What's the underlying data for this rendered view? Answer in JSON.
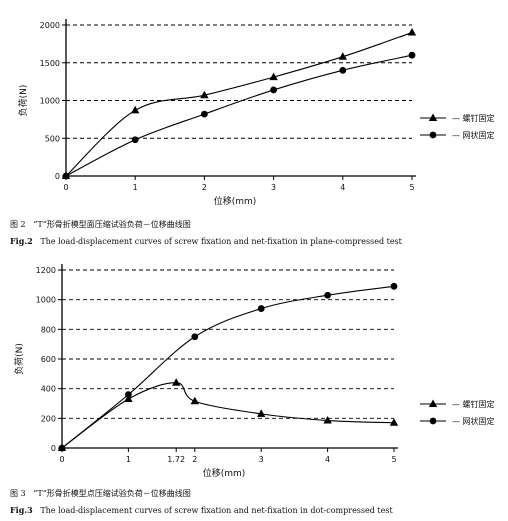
{
  "chart_data": [
    {
      "type": "line",
      "xlabel": "位移(mm)",
      "ylabel": "负荷(N)",
      "xlim": [
        0,
        5
      ],
      "ylim": [
        0,
        2000
      ],
      "xticks": [
        "0",
        "1",
        "2",
        "3",
        "4",
        "5"
      ],
      "yticks": [
        "0",
        "500",
        "1000",
        "1500",
        "2000"
      ],
      "grid": "horizontal-dashed",
      "legend_position": "right",
      "series": [
        {
          "name": "螺钉固定",
          "marker": "triangle",
          "x": [
            0,
            1,
            2,
            3,
            4,
            5
          ],
          "y": [
            0,
            870,
            1070,
            1310,
            1580,
            1900
          ]
        },
        {
          "name": "网状固定",
          "marker": "circle",
          "x": [
            0,
            1,
            2,
            3,
            4,
            5
          ],
          "y": [
            0,
            480,
            820,
            1140,
            1400,
            1600
          ]
        }
      ]
    },
    {
      "type": "line",
      "xlabel": "位移(mm)",
      "ylabel": "负荷(N)",
      "xlim": [
        0,
        5
      ],
      "ylim": [
        0,
        1200
      ],
      "xticks": [
        "0",
        "1",
        "1.72",
        "2",
        "3",
        "4",
        "5"
      ],
      "xtick_values": [
        0,
        1,
        1.72,
        2,
        3,
        4,
        5
      ],
      "yticks": [
        "0",
        "200",
        "400",
        "600",
        "800",
        "1000",
        "1200"
      ],
      "grid": "horizontal-dashed",
      "legend_position": "right",
      "series": [
        {
          "name": "螺钉固定",
          "marker": "triangle",
          "x": [
            0,
            1,
            1.72,
            2,
            3,
            4,
            5
          ],
          "y": [
            0,
            330,
            440,
            315,
            230,
            185,
            170
          ]
        },
        {
          "name": "网状固定",
          "marker": "circle",
          "x": [
            0,
            1,
            2,
            3,
            4,
            5
          ],
          "y": [
            0,
            360,
            750,
            940,
            1030,
            1090
          ]
        }
      ]
    }
  ],
  "captions": {
    "fig2_cn_label": "图 2",
    "fig2_cn_text": "“T”形骨折模型面压缩试验负荷－位移曲线图",
    "fig2_en_label": "Fig.2",
    "fig2_en_text": "The load-displacement curves of screw fixation and net-fixation in plane-compressed test",
    "fig3_cn_label": "图 3",
    "fig3_cn_text": "“T”形骨折模型点压缩试验负荷－位移曲线图",
    "fig3_en_label": "Fig.3",
    "fig3_en_text": "The load-displacement curves of screw fixation and net-fixation in dot-compressed test"
  }
}
